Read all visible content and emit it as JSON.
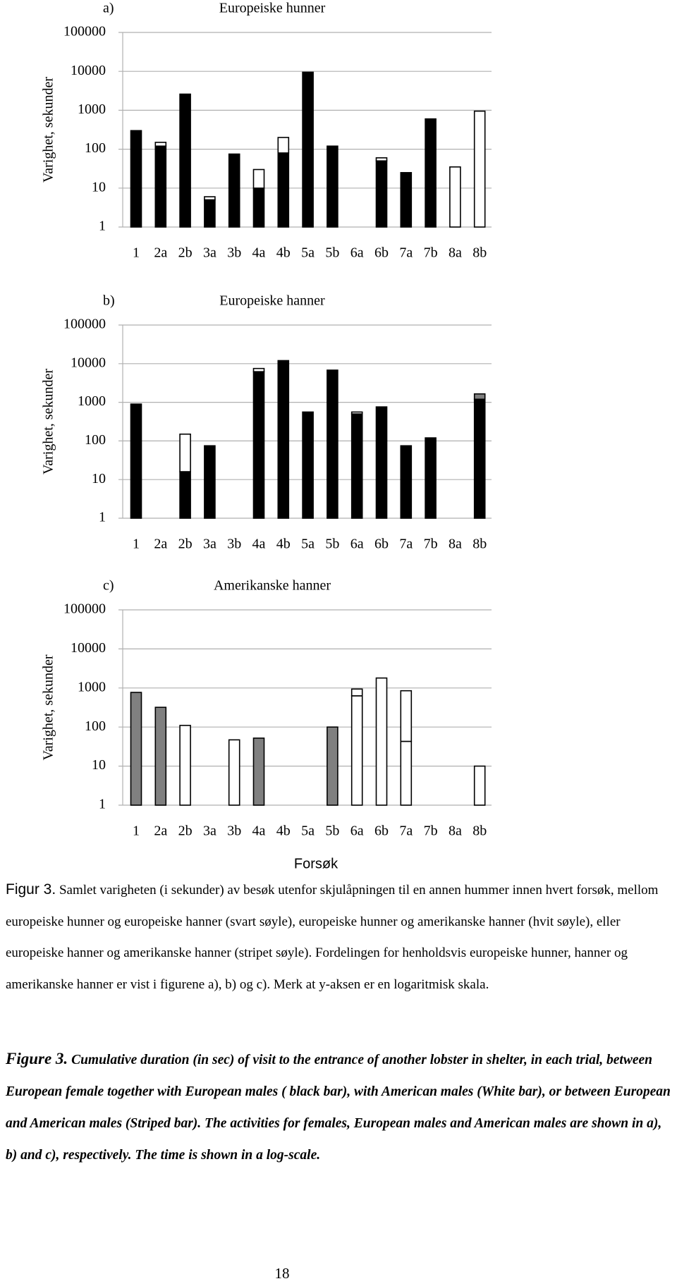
{
  "chart_data": [
    {
      "type": "bar",
      "stacked": true,
      "log_scale": true,
      "grid": true,
      "panel": "a)",
      "title": "Europeiske hunner",
      "y_label": "Varighet, sekunder",
      "categories": [
        "1",
        "2a",
        "2b",
        "3a",
        "3b",
        "4a",
        "4b",
        "5a",
        "5b",
        "6a",
        "6b",
        "7a",
        "7b",
        "8a",
        "8b"
      ],
      "ylim": [
        1,
        100000
      ],
      "yticks": [
        1,
        10,
        100,
        1000,
        10000,
        100000
      ],
      "series": [
        {
          "color": "#000000",
          "values": [
            300,
            120,
            2600,
            5,
            75,
            10,
            80,
            9500,
            120,
            null,
            50,
            25,
            600,
            null,
            null
          ]
        },
        {
          "color": "#ffffff",
          "values": [
            null,
            30,
            null,
            1,
            null,
            20,
            120,
            null,
            null,
            null,
            10,
            null,
            null,
            35,
            950
          ]
        }
      ]
    },
    {
      "type": "bar",
      "stacked": true,
      "log_scale": true,
      "grid": true,
      "panel": "b)",
      "title": "Europeiske hanner",
      "y_label": "Varighet, sekunder",
      "categories": [
        "1",
        "2a",
        "2b",
        "3a",
        "3b",
        "4a",
        "4b",
        "5a",
        "5b",
        "6a",
        "6b",
        "7a",
        "7b",
        "8a",
        "8b"
      ],
      "ylim": [
        1,
        100000
      ],
      "yticks": [
        1,
        10,
        100,
        1000,
        10000,
        100000
      ],
      "series": [
        {
          "color": "#000000",
          "values": [
            900,
            null,
            16,
            75,
            null,
            6200,
            12000,
            560,
            6800,
            500,
            760,
            75,
            120,
            null,
            1200
          ]
        },
        {
          "color": "#ffffff",
          "values": [
            null,
            null,
            134,
            null,
            null,
            1300,
            null,
            null,
            null,
            60,
            null,
            null,
            null,
            null,
            null
          ]
        },
        {
          "color": "#808080",
          "values": [
            null,
            null,
            null,
            null,
            null,
            null,
            null,
            null,
            null,
            null,
            null,
            null,
            null,
            null,
            450
          ]
        }
      ]
    },
    {
      "type": "bar",
      "stacked": true,
      "log_scale": true,
      "grid": true,
      "panel": "c)",
      "title": "Amerikanske hanner",
      "y_label": "Varighet, sekunder",
      "x_label": "Forsøk",
      "categories": [
        "1",
        "2a",
        "2b",
        "3a",
        "3b",
        "4a",
        "4b",
        "5a",
        "5b",
        "6a",
        "6b",
        "7a",
        "7b",
        "8a",
        "8b"
      ],
      "ylim": [
        1,
        100000
      ],
      "yticks": [
        1,
        10,
        100,
        1000,
        10000,
        100000
      ],
      "series": [
        {
          "color": "#808080",
          "values": [
            770,
            320,
            null,
            null,
            null,
            52,
            null,
            null,
            100,
            null,
            null,
            null,
            null,
            null,
            null
          ]
        },
        {
          "color": "#ffffff",
          "values": [
            null,
            null,
            110,
            null,
            47,
            null,
            null,
            null,
            null,
            630,
            1800,
            43,
            null,
            null,
            10
          ]
        },
        {
          "color": "#ffffff",
          "values": [
            null,
            null,
            null,
            null,
            null,
            null,
            null,
            null,
            null,
            310,
            null,
            807,
            null,
            null,
            null
          ]
        }
      ]
    }
  ],
  "caption": {
    "no_label": "Figur 3.",
    "no_text": "Samlet varigheten (i sekunder) av besøk utenfor skjulåpningen til en annen hummer innen hvert forsøk, mellom europeiske hunner og europeiske hanner (svart søyle), europeiske hunner og amerikanske hanner (hvit søyle),  eller europeiske hanner og amerikanske hanner (stripet søyle). Fordelingen for henholdsvis europeiske hunner, hanner og amerikanske hanner er vist i figurene a), b) og c). Merk at y-aksen er en logaritmisk skala.",
    "en_label": "Figure 3.",
    "en_text": "Cumulative duration (in sec) of visit to the entrance of another lobster in shelter, in each trial, between European female together with European males ( black bar), with American males (White bar), or between European and American males (Striped bar). The activities for females, European males and American males are shown in a), b) and c), respectively. The time is shown in a log-scale."
  },
  "page_number": "18"
}
